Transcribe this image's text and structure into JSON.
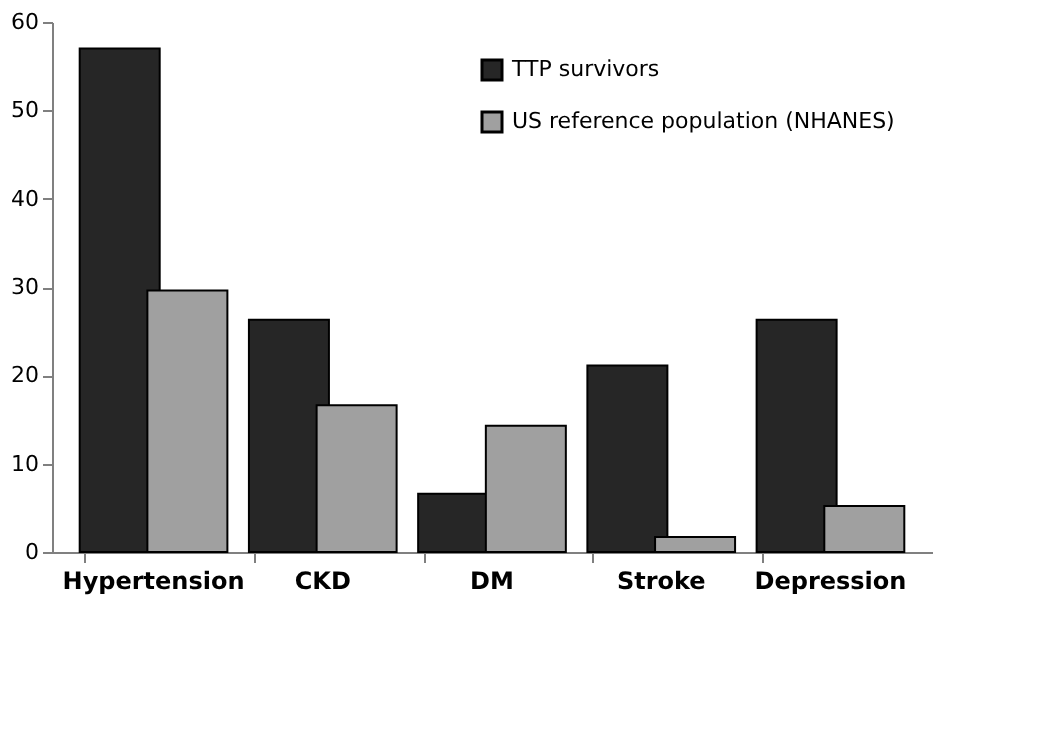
{
  "chart_data": {
    "type": "bar",
    "categories": [
      "Hypertension",
      "CKD",
      "DM",
      "Stroke",
      "Depression"
    ],
    "series": [
      {
        "name": "TTP survivors",
        "color": "#262626",
        "values": [
          57,
          26.3,
          6.6,
          21.1,
          26.3
        ]
      },
      {
        "name": "US reference population (NHANES)",
        "color": "#a0a0a0",
        "values": [
          29.6,
          16.6,
          14.3,
          1.7,
          5.2
        ]
      }
    ],
    "ylim": [
      0,
      60
    ],
    "yticks": [
      0,
      10,
      20,
      30,
      40,
      50,
      60
    ],
    "grid": false,
    "legend": "top right"
  }
}
